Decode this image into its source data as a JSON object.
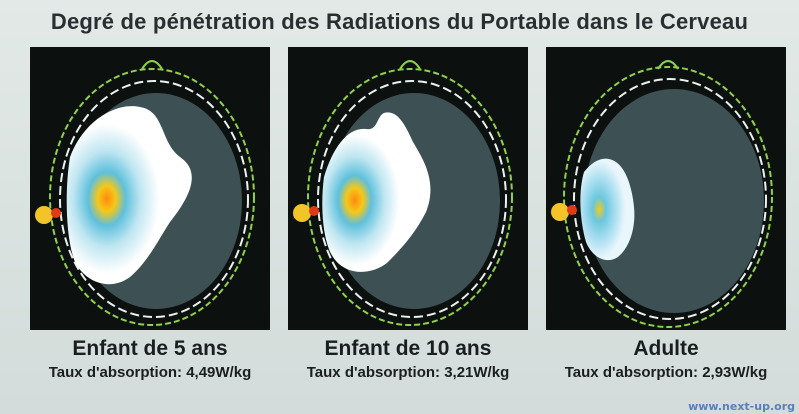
{
  "title": "Degré de pénétration des Radiations du Portable dans le Cerveau",
  "panels": [
    {
      "age_label": "Enfant de 5 ans",
      "absorption_label": "Taux d'absorption: 4,49W/kg"
    },
    {
      "age_label": "Enfant de 10 ans",
      "absorption_label": "Taux d'absorption: 3,21W/kg"
    },
    {
      "age_label": "Adulte",
      "absorption_label": "Taux d'absorption: 2,93W/kg"
    }
  ],
  "watermark": "www.next-up.org",
  "colors": {
    "background": "#dbe3e1",
    "scan_background": "#0c1110",
    "brain": "#3d5155",
    "radiation_core": "#f0c319",
    "radiation_mid": "#4fb8d8",
    "radiation_outer": "#ffffff",
    "head_outline": "#8fd14a"
  }
}
